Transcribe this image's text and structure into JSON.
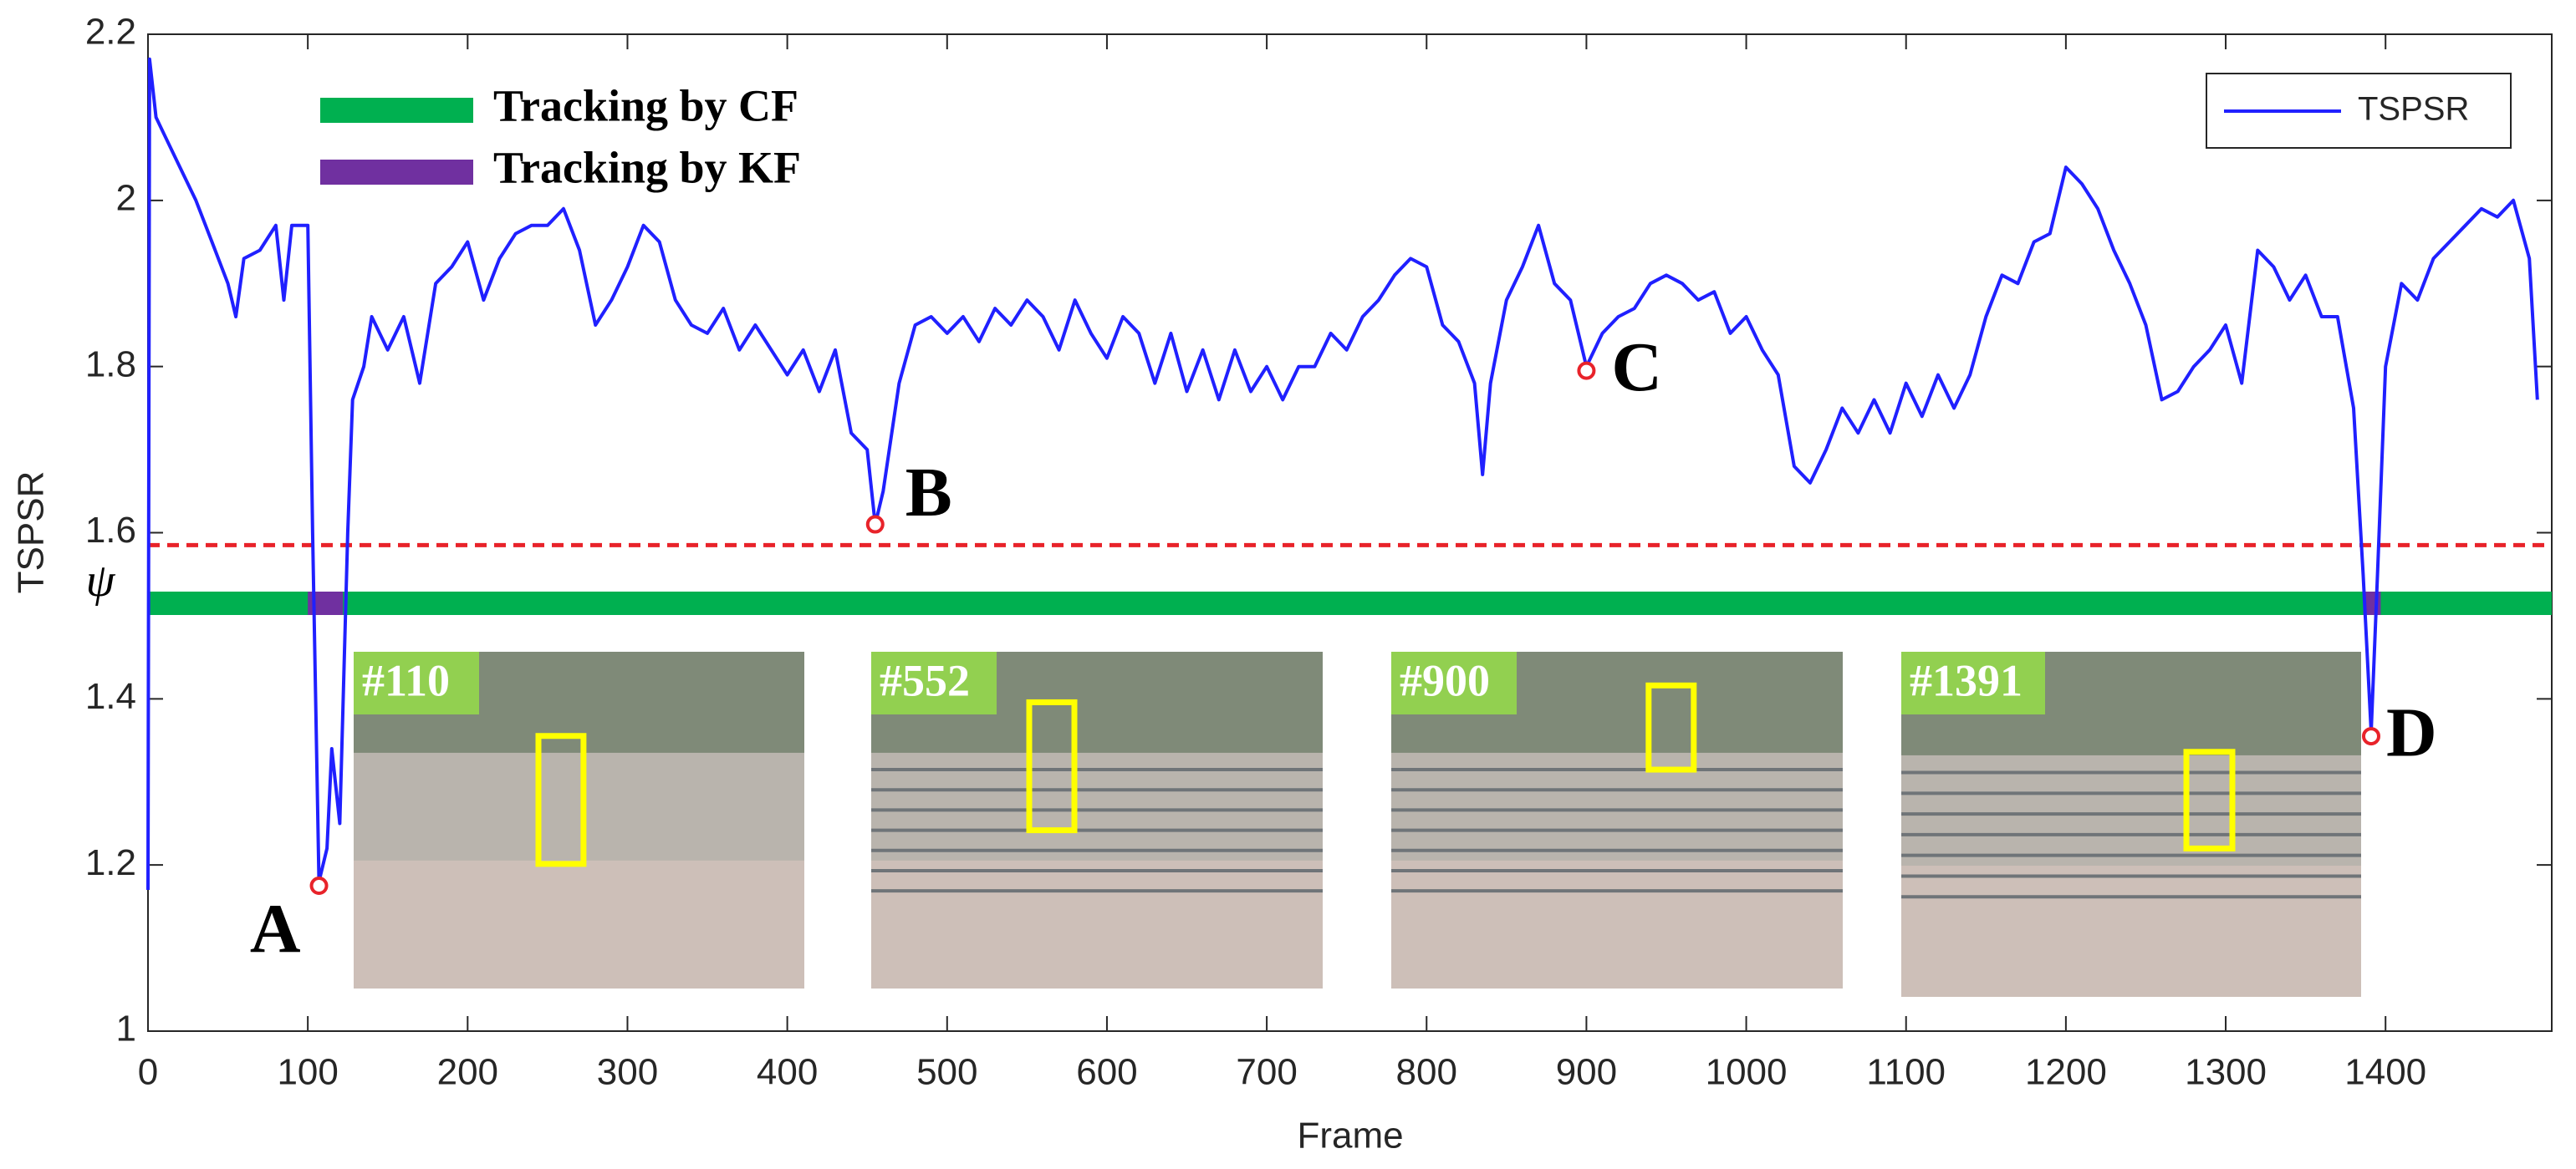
{
  "chart_data": {
    "type": "line",
    "xlabel": "Frame",
    "ylabel": "TSPSR",
    "xlim": [
      0,
      1504
    ],
    "ylim": [
      1,
      2.2
    ],
    "xticks": [
      0,
      100,
      200,
      300,
      400,
      500,
      600,
      700,
      800,
      900,
      1000,
      1100,
      1200,
      1300,
      1400
    ],
    "yticks": [
      1,
      1.2,
      1.4,
      1.6,
      1.8,
      2,
      2.2
    ],
    "grid": false,
    "legend": "upper right",
    "x": [
      0,
      1,
      5,
      10,
      20,
      30,
      40,
      50,
      55,
      60,
      70,
      80,
      85,
      90,
      100,
      103,
      107,
      112,
      115,
      120,
      125,
      128,
      135,
      140,
      150,
      160,
      170,
      180,
      190,
      200,
      210,
      220,
      230,
      240,
      250,
      260,
      270,
      280,
      290,
      300,
      310,
      320,
      330,
      340,
      350,
      360,
      370,
      380,
      390,
      400,
      410,
      420,
      430,
      440,
      450,
      455,
      460,
      470,
      480,
      490,
      500,
      510,
      520,
      530,
      540,
      550,
      560,
      570,
      580,
      590,
      600,
      610,
      620,
      630,
      640,
      650,
      660,
      670,
      680,
      690,
      700,
      710,
      720,
      730,
      740,
      750,
      760,
      770,
      780,
      790,
      800,
      810,
      820,
      830,
      835,
      840,
      850,
      860,
      870,
      880,
      890,
      900,
      910,
      920,
      930,
      940,
      950,
      960,
      970,
      980,
      990,
      1000,
      1010,
      1020,
      1030,
      1040,
      1050,
      1060,
      1070,
      1080,
      1090,
      1100,
      1110,
      1120,
      1130,
      1140,
      1150,
      1160,
      1170,
      1180,
      1190,
      1200,
      1210,
      1220,
      1230,
      1240,
      1250,
      1260,
      1270,
      1280,
      1290,
      1300,
      1310,
      1320,
      1330,
      1340,
      1350,
      1360,
      1370,
      1380,
      1386,
      1391,
      1395,
      1400,
      1410,
      1420,
      1430,
      1440,
      1450,
      1460,
      1470,
      1480,
      1490,
      1495
    ],
    "series": [
      {
        "name": "TSPSR",
        "color": "#2020ff",
        "values": [
          1.17,
          2.17,
          2.1,
          2.08,
          2.04,
          2.0,
          1.95,
          1.9,
          1.86,
          1.93,
          1.94,
          1.97,
          1.88,
          1.97,
          1.97,
          1.6,
          1.18,
          1.22,
          1.34,
          1.25,
          1.6,
          1.76,
          1.8,
          1.86,
          1.82,
          1.86,
          1.78,
          1.9,
          1.92,
          1.95,
          1.88,
          1.93,
          1.96,
          1.97,
          1.97,
          1.99,
          1.94,
          1.85,
          1.88,
          1.92,
          1.97,
          1.95,
          1.88,
          1.85,
          1.84,
          1.87,
          1.82,
          1.85,
          1.82,
          1.79,
          1.82,
          1.77,
          1.82,
          1.72,
          1.7,
          1.61,
          1.65,
          1.78,
          1.85,
          1.86,
          1.84,
          1.86,
          1.83,
          1.87,
          1.85,
          1.88,
          1.86,
          1.82,
          1.88,
          1.84,
          1.81,
          1.86,
          1.84,
          1.78,
          1.84,
          1.77,
          1.82,
          1.76,
          1.82,
          1.77,
          1.8,
          1.76,
          1.8,
          1.8,
          1.84,
          1.82,
          1.86,
          1.88,
          1.91,
          1.93,
          1.92,
          1.85,
          1.83,
          1.78,
          1.67,
          1.78,
          1.88,
          1.92,
          1.97,
          1.9,
          1.88,
          1.8,
          1.84,
          1.86,
          1.87,
          1.9,
          1.91,
          1.9,
          1.88,
          1.89,
          1.84,
          1.86,
          1.82,
          1.79,
          1.68,
          1.66,
          1.7,
          1.75,
          1.72,
          1.76,
          1.72,
          1.78,
          1.74,
          1.79,
          1.75,
          1.79,
          1.86,
          1.91,
          1.9,
          1.95,
          1.96,
          2.04,
          2.02,
          1.99,
          1.94,
          1.9,
          1.85,
          1.76,
          1.77,
          1.8,
          1.82,
          1.85,
          1.78,
          1.94,
          1.92,
          1.88,
          1.91,
          1.86,
          1.86,
          1.75,
          1.55,
          1.36,
          1.55,
          1.8,
          1.9,
          1.88,
          1.93,
          1.95,
          1.97,
          1.99,
          1.98,
          2.0,
          1.93,
          1.76
        ]
      }
    ],
    "threshold": {
      "value": 1.585,
      "label": "ψ",
      "color": "#e8232a"
    },
    "tracking": {
      "level": 1.515,
      "cf": {
        "name": "Tracking by CF",
        "color": "#00b050",
        "range": [
          0,
          1504
        ]
      },
      "kf": {
        "name": "Tracking by KF",
        "color": "#7030a0",
        "ranges": [
          [
            100,
            122
          ],
          [
            1386,
            1397
          ]
        ]
      }
    },
    "annotations": [
      {
        "label": "A",
        "x": 107,
        "y": 1.175
      },
      {
        "label": "B",
        "x": 455,
        "y": 1.61
      },
      {
        "label": "C",
        "x": 900,
        "y": 1.795
      },
      {
        "label": "D",
        "x": 1391,
        "y": 1.355
      }
    ],
    "insets": [
      {
        "label": "#110"
      },
      {
        "label": "#552"
      },
      {
        "label": "#900"
      },
      {
        "label": "#1391"
      }
    ]
  }
}
